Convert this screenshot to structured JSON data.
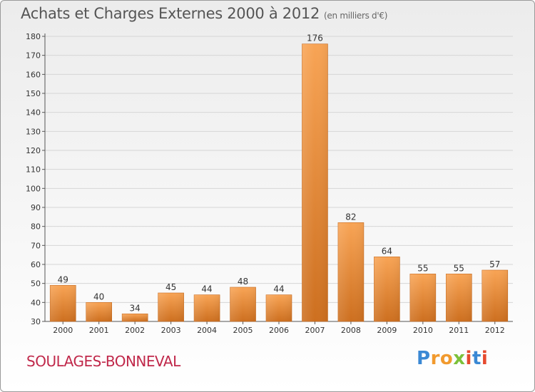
{
  "header": {
    "title": "Achats et Charges Externes 2000 à 2012",
    "unit": "(en milliers d'€)"
  },
  "commune": "SOULAGES-BONNEVAL",
  "brand": {
    "text": "Proxiti",
    "colors": [
      "#3a88d4",
      "#f19a2e",
      "#7cc13a",
      "#e64a2e"
    ]
  },
  "chart_data": {
    "type": "bar",
    "title": "Achats et Charges Externes 2000 à 2012",
    "categories": [
      "2000",
      "2001",
      "2002",
      "2003",
      "2004",
      "2005",
      "2006",
      "2007",
      "2008",
      "2009",
      "2010",
      "2011",
      "2012"
    ],
    "values": [
      49,
      40,
      34,
      45,
      44,
      48,
      44,
      176,
      82,
      64,
      55,
      55,
      57
    ],
    "ylim": [
      30,
      180
    ],
    "yticks": [
      30,
      40,
      50,
      60,
      70,
      80,
      90,
      100,
      110,
      120,
      130,
      140,
      150,
      160,
      170,
      180
    ],
    "grid": true,
    "bar_color_light": "#f8a455",
    "bar_color_dark": "#cd6f1f"
  }
}
